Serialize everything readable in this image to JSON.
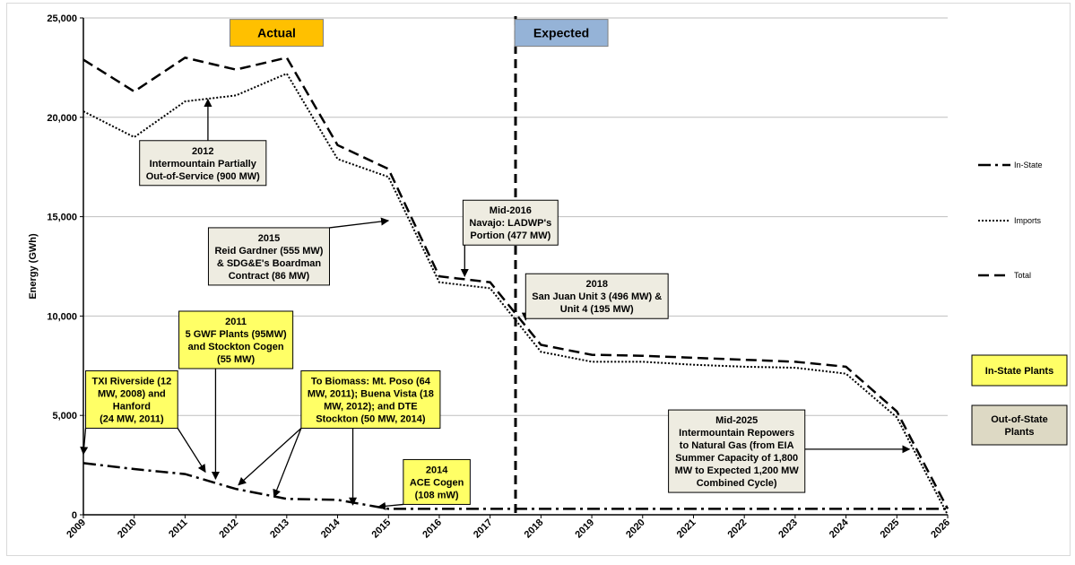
{
  "chart_data": {
    "type": "line",
    "title": "",
    "xlabel": "",
    "ylabel": "Energy (GWh)",
    "xlim": [
      2009,
      2026
    ],
    "ylim": [
      0,
      25000
    ],
    "yticks": [
      0,
      5000,
      10000,
      15000,
      20000,
      25000
    ],
    "ytick_labels": [
      "0",
      "5,000",
      "10,000",
      "15,000",
      "20,000",
      "25,000"
    ],
    "xticks": [
      2009,
      2010,
      2011,
      2012,
      2013,
      2014,
      2015,
      2016,
      2017,
      2018,
      2019,
      2020,
      2021,
      2022,
      2023,
      2024,
      2025,
      2026
    ],
    "xtick_labels": [
      "2009",
      "2010",
      "2011",
      "2012",
      "2013",
      "2014",
      "2015",
      "2016",
      "2017",
      "2018",
      "2019",
      "2020",
      "2021",
      "2022",
      "2023",
      "2024",
      "2025",
      "2026"
    ],
    "grid": "horizontal",
    "legend_position": "right",
    "divider_x": 2017.5,
    "series": [
      {
        "name": "In-State",
        "style": "dash-dot",
        "color": "#000000",
        "x": [
          2009,
          2010,
          2011,
          2012,
          2013,
          2014,
          2015,
          2016,
          2017,
          2018,
          2019,
          2020,
          2021,
          2022,
          2023,
          2024,
          2025,
          2026
        ],
        "y": [
          2600,
          2300,
          2050,
          1300,
          800,
          750,
          300,
          300,
          300,
          300,
          300,
          300,
          300,
          300,
          300,
          300,
          300,
          300
        ]
      },
      {
        "name": "Imports",
        "style": "dotted",
        "color": "#000000",
        "x": [
          2009,
          2010,
          2011,
          2012,
          2013,
          2014,
          2015,
          2016,
          2017,
          2018,
          2019,
          2020,
          2021,
          2022,
          2023,
          2024,
          2025,
          2026
        ],
        "y": [
          20300,
          19000,
          20800,
          21100,
          22200,
          17900,
          17000,
          11700,
          11400,
          8200,
          7700,
          7700,
          7550,
          7450,
          7400,
          7100,
          4900,
          0
        ]
      },
      {
        "name": "Total",
        "style": "dashed",
        "color": "#000000",
        "x": [
          2009,
          2010,
          2011,
          2012,
          2013,
          2014,
          2015,
          2016,
          2017,
          2018,
          2019,
          2020,
          2021,
          2022,
          2023,
          2024,
          2025,
          2026
        ],
        "y": [
          22900,
          21300,
          23000,
          22400,
          23000,
          18600,
          17400,
          12000,
          11700,
          8550,
          8050,
          8000,
          7900,
          7800,
          7700,
          7450,
          5200,
          300
        ]
      }
    ],
    "period_labels": [
      {
        "text": "Actual",
        "fill": "#ffc000",
        "x": 2012.8,
        "y": 24250
      },
      {
        "text": "Expected",
        "fill": "#95b3d7",
        "x": 2018.4,
        "y": 24250
      }
    ],
    "plant_legend": [
      {
        "text": "In-State Plants",
        "fill": "#ffff66"
      },
      {
        "text": "Out-of-State Plants",
        "fill": "#ddd9c4"
      }
    ],
    "annotations": [
      {
        "kind": "out-of-state",
        "lines": [
          "2012",
          "Intermountain Partially",
          "Out-of-Service (900 MW)"
        ],
        "cx": 2011.35,
        "cy": 17700,
        "targets": [
          [
            2011.45,
            20900
          ]
        ]
      },
      {
        "kind": "out-of-state",
        "lines": [
          "Mid-2016",
          "Navajo: LADWP's",
          "Portion (477 MW)"
        ],
        "cx": 2017.4,
        "cy": 14700,
        "targets": [
          [
            2016.5,
            12000
          ]
        ]
      },
      {
        "kind": "out-of-state",
        "lines": [
          "2015",
          "Reid Gardner (555 MW)",
          "& SDG&E's  Boardman",
          "Contract (86 MW)"
        ],
        "cx": 2012.65,
        "cy": 13000,
        "targets": [
          [
            2015.0,
            14800
          ]
        ]
      },
      {
        "kind": "out-of-state",
        "lines": [
          "2018",
          "San Juan Unit 3 (496 MW) &",
          "Unit 4 (195 MW)"
        ],
        "cx": 2019.1,
        "cy": 11000,
        "targets": [
          [
            2017.7,
            9800
          ]
        ]
      },
      {
        "kind": "in-state",
        "lines": [
          "2011",
          "5 GWF Plants (95MW)",
          "and Stockton Cogen",
          "(55 MW)"
        ],
        "cx": 2012.0,
        "cy": 8800,
        "targets": [
          [
            2011.6,
            1800
          ]
        ]
      },
      {
        "kind": "in-state",
        "lines": [
          "TXI Riverside (12",
          "MW, 2008) and",
          "Hanford",
          "(24 MW, 2011)"
        ],
        "cx": 2009.95,
        "cy": 5800,
        "targets": [
          [
            2009.0,
            3050
          ],
          [
            2011.4,
            2150
          ]
        ]
      },
      {
        "kind": "in-state",
        "lines": [
          "To Biomass: Mt. Poso (64",
          "MW, 2011); Buena Vista (18",
          "MW, 2012); and DTE",
          "Stockton (50 MW, 2014)"
        ],
        "cx": 2014.65,
        "cy": 5800,
        "targets": [
          [
            2012.05,
            1500
          ],
          [
            2012.75,
            900
          ],
          [
            2014.3,
            500
          ]
        ]
      },
      {
        "kind": "in-state",
        "lines": [
          "2014",
          "ACE Cogen",
          "(108 mW)"
        ],
        "cx": 2015.95,
        "cy": 1650,
        "targets": [
          [
            2014.8,
            400
          ]
        ]
      },
      {
        "kind": "out-of-state",
        "lines": [
          "Mid-2025",
          "Intermountain Repowers",
          "to Natural Gas (from EIA",
          "Summer Capacity of 1,800",
          "MW to Expected 1,200 MW",
          "Combined Cycle)"
        ],
        "cx": 2021.85,
        "cy": 3200,
        "targets": [
          [
            2025.25,
            3300
          ]
        ]
      }
    ]
  }
}
